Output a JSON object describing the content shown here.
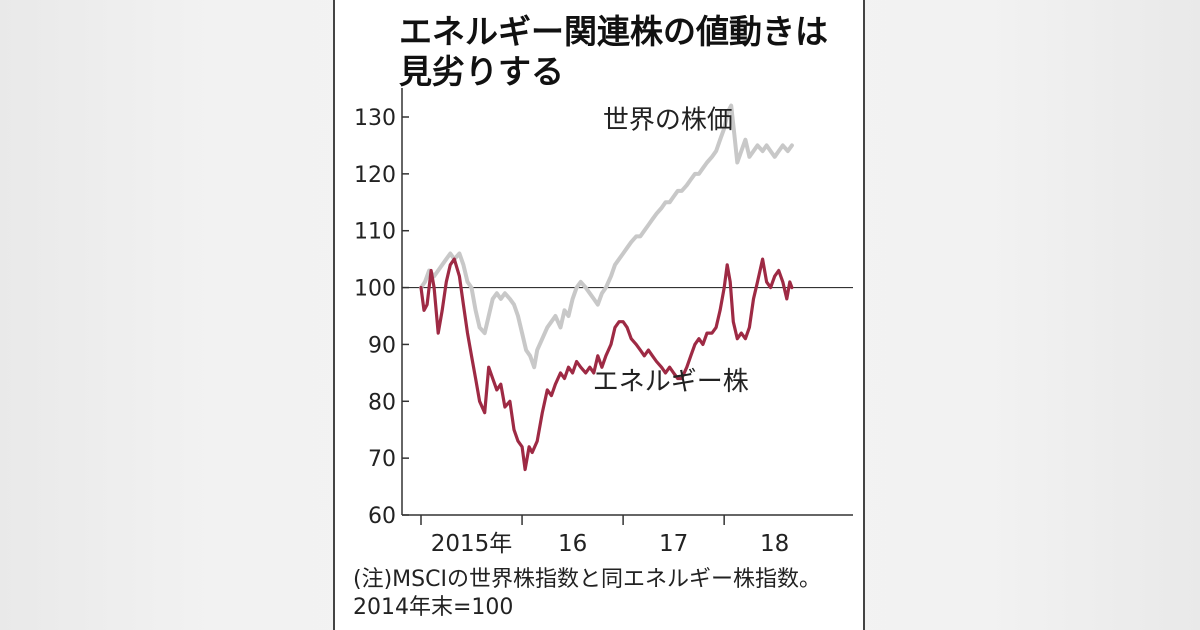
{
  "title_lines": [
    "エネルギー関連株の値動きは",
    "見劣りする"
  ],
  "note_lines": [
    "(注)MSCIの世界株指数と同エネルギー株指数。",
    "2014年末=100"
  ],
  "colors": {
    "world": "#c8c8c8",
    "energy": "#9e2a44",
    "axis": "#333333",
    "baseline": "#333333"
  },
  "chart_data": {
    "type": "line",
    "title": "エネルギー関連株の値動きは見劣りする",
    "xlabel": "",
    "ylabel": "",
    "xlim": [
      2015.0,
      2018.8
    ],
    "ylim": [
      60,
      130
    ],
    "yticks": [
      60,
      70,
      80,
      90,
      100,
      110,
      120,
      130
    ],
    "xtick_labels": [
      {
        "x": 2015.5,
        "label": "2015年"
      },
      {
        "x": 2016.5,
        "label": "16"
      },
      {
        "x": 2017.5,
        "label": "17"
      },
      {
        "x": 2018.5,
        "label": "18"
      }
    ],
    "year_boundaries": [
      2016.0,
      2017.0,
      2018.0
    ],
    "reference_line": 100,
    "grid": false,
    "series": [
      {
        "name": "世界の株価",
        "color": "#c8c8c8",
        "label_at": [
          2016.8,
          128
        ],
        "points": [
          [
            2015.0,
            100
          ],
          [
            2015.04,
            101
          ],
          [
            2015.08,
            103
          ],
          [
            2015.13,
            102
          ],
          [
            2015.17,
            103
          ],
          [
            2015.21,
            104
          ],
          [
            2015.25,
            105
          ],
          [
            2015.29,
            106
          ],
          [
            2015.33,
            105
          ],
          [
            2015.38,
            106
          ],
          [
            2015.42,
            104
          ],
          [
            2015.46,
            101
          ],
          [
            2015.5,
            100
          ],
          [
            2015.54,
            96
          ],
          [
            2015.58,
            93
          ],
          [
            2015.63,
            92
          ],
          [
            2015.67,
            95
          ],
          [
            2015.71,
            98
          ],
          [
            2015.75,
            99
          ],
          [
            2015.79,
            98
          ],
          [
            2015.83,
            99
          ],
          [
            2015.88,
            98
          ],
          [
            2015.92,
            97
          ],
          [
            2015.96,
            95
          ],
          [
            2016.0,
            92
          ],
          [
            2016.04,
            89
          ],
          [
            2016.08,
            88
          ],
          [
            2016.12,
            86
          ],
          [
            2016.15,
            89
          ],
          [
            2016.2,
            91
          ],
          [
            2016.25,
            93
          ],
          [
            2016.29,
            94
          ],
          [
            2016.33,
            95
          ],
          [
            2016.38,
            93
          ],
          [
            2016.42,
            96
          ],
          [
            2016.46,
            95
          ],
          [
            2016.5,
            98
          ],
          [
            2016.54,
            100
          ],
          [
            2016.58,
            101
          ],
          [
            2016.63,
            100
          ],
          [
            2016.67,
            99
          ],
          [
            2016.71,
            98
          ],
          [
            2016.75,
            97
          ],
          [
            2016.79,
            99
          ],
          [
            2016.83,
            100
          ],
          [
            2016.88,
            102
          ],
          [
            2016.92,
            104
          ],
          [
            2016.96,
            105
          ],
          [
            2017.0,
            106
          ],
          [
            2017.04,
            107
          ],
          [
            2017.08,
            108
          ],
          [
            2017.13,
            109
          ],
          [
            2017.17,
            109
          ],
          [
            2017.21,
            110
          ],
          [
            2017.25,
            111
          ],
          [
            2017.29,
            112
          ],
          [
            2017.33,
            113
          ],
          [
            2017.38,
            114
          ],
          [
            2017.42,
            115
          ],
          [
            2017.46,
            115
          ],
          [
            2017.5,
            116
          ],
          [
            2017.54,
            117
          ],
          [
            2017.58,
            117
          ],
          [
            2017.63,
            118
          ],
          [
            2017.67,
            119
          ],
          [
            2017.71,
            120
          ],
          [
            2017.75,
            120
          ],
          [
            2017.79,
            121
          ],
          [
            2017.83,
            122
          ],
          [
            2017.88,
            123
          ],
          [
            2017.92,
            124
          ],
          [
            2017.96,
            126
          ],
          [
            2018.0,
            128
          ],
          [
            2018.04,
            131
          ],
          [
            2018.07,
            132
          ],
          [
            2018.1,
            127
          ],
          [
            2018.13,
            122
          ],
          [
            2018.17,
            124
          ],
          [
            2018.21,
            126
          ],
          [
            2018.25,
            123
          ],
          [
            2018.29,
            124
          ],
          [
            2018.33,
            125
          ],
          [
            2018.38,
            124
          ],
          [
            2018.42,
            125
          ],
          [
            2018.46,
            124
          ],
          [
            2018.5,
            123
          ],
          [
            2018.54,
            124
          ],
          [
            2018.58,
            125
          ],
          [
            2018.63,
            124
          ],
          [
            2018.67,
            125
          ]
        ]
      },
      {
        "name": "エネルギー株",
        "color": "#9e2a44",
        "label_at": [
          2016.7,
          82
        ],
        "points": [
          [
            2015.0,
            100
          ],
          [
            2015.03,
            96
          ],
          [
            2015.06,
            97
          ],
          [
            2015.1,
            103
          ],
          [
            2015.13,
            100
          ],
          [
            2015.17,
            92
          ],
          [
            2015.21,
            96
          ],
          [
            2015.25,
            101
          ],
          [
            2015.29,
            104
          ],
          [
            2015.33,
            105
          ],
          [
            2015.38,
            102
          ],
          [
            2015.42,
            97
          ],
          [
            2015.46,
            92
          ],
          [
            2015.5,
            88
          ],
          [
            2015.54,
            84
          ],
          [
            2015.58,
            80
          ],
          [
            2015.63,
            78
          ],
          [
            2015.67,
            86
          ],
          [
            2015.71,
            84
          ],
          [
            2015.75,
            82
          ],
          [
            2015.79,
            83
          ],
          [
            2015.83,
            79
          ],
          [
            2015.88,
            80
          ],
          [
            2015.92,
            75
          ],
          [
            2015.96,
            73
          ],
          [
            2016.0,
            72
          ],
          [
            2016.03,
            68
          ],
          [
            2016.07,
            72
          ],
          [
            2016.1,
            71
          ],
          [
            2016.15,
            73
          ],
          [
            2016.2,
            78
          ],
          [
            2016.25,
            82
          ],
          [
            2016.29,
            81
          ],
          [
            2016.33,
            83
          ],
          [
            2016.38,
            85
          ],
          [
            2016.42,
            84
          ],
          [
            2016.46,
            86
          ],
          [
            2016.5,
            85
          ],
          [
            2016.54,
            87
          ],
          [
            2016.58,
            86
          ],
          [
            2016.63,
            85
          ],
          [
            2016.67,
            86
          ],
          [
            2016.71,
            85
          ],
          [
            2016.75,
            88
          ],
          [
            2016.79,
            86
          ],
          [
            2016.83,
            88
          ],
          [
            2016.88,
            90
          ],
          [
            2016.92,
            93
          ],
          [
            2016.96,
            94
          ],
          [
            2017.0,
            94
          ],
          [
            2017.04,
            93
          ],
          [
            2017.08,
            91
          ],
          [
            2017.13,
            90
          ],
          [
            2017.17,
            89
          ],
          [
            2017.21,
            88
          ],
          [
            2017.25,
            89
          ],
          [
            2017.29,
            88
          ],
          [
            2017.33,
            87
          ],
          [
            2017.38,
            86
          ],
          [
            2017.42,
            85
          ],
          [
            2017.46,
            86
          ],
          [
            2017.5,
            85
          ],
          [
            2017.54,
            84
          ],
          [
            2017.58,
            84
          ],
          [
            2017.63,
            86
          ],
          [
            2017.67,
            88
          ],
          [
            2017.71,
            90
          ],
          [
            2017.75,
            91
          ],
          [
            2017.79,
            90
          ],
          [
            2017.83,
            92
          ],
          [
            2017.88,
            92
          ],
          [
            2017.92,
            93
          ],
          [
            2017.96,
            96
          ],
          [
            2018.0,
            100
          ],
          [
            2018.03,
            104
          ],
          [
            2018.06,
            101
          ],
          [
            2018.09,
            94
          ],
          [
            2018.13,
            91
          ],
          [
            2018.17,
            92
          ],
          [
            2018.21,
            91
          ],
          [
            2018.25,
            93
          ],
          [
            2018.29,
            98
          ],
          [
            2018.33,
            101
          ],
          [
            2018.38,
            105
          ],
          [
            2018.42,
            101
          ],
          [
            2018.46,
            100
          ],
          [
            2018.5,
            102
          ],
          [
            2018.54,
            103
          ],
          [
            2018.58,
            101
          ],
          [
            2018.62,
            98
          ],
          [
            2018.65,
            101
          ],
          [
            2018.67,
            100
          ]
        ]
      }
    ]
  }
}
